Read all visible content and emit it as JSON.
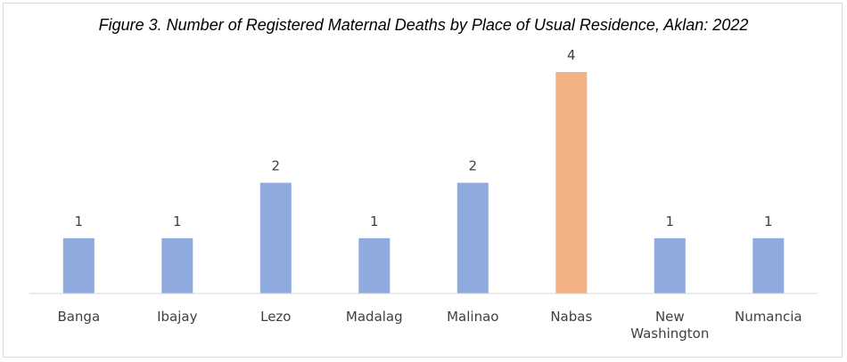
{
  "chart_data": {
    "type": "bar",
    "title": "Figure 3. Number of Registered Maternal Deaths by Place of Usual Residence, Aklan: 2022",
    "xlabel": "",
    "ylabel": "",
    "categories": [
      [
        "Banga"
      ],
      [
        "Ibajay"
      ],
      [
        "Lezo"
      ],
      [
        "Madalag"
      ],
      [
        "Malinao"
      ],
      [
        "Nabas"
      ],
      [
        "New",
        "Washington"
      ],
      [
        "Numancia"
      ]
    ],
    "values": [
      1,
      1,
      2,
      1,
      2,
      4,
      1,
      1
    ],
    "ylim": [
      0,
      4
    ],
    "grid": false,
    "legend": "none",
    "colors": {
      "default_bar": "#8FAADC",
      "highlight_bar": "#F4B183",
      "axis": "#d9d9d9",
      "text": "#404040"
    },
    "highlight_category": "Nabas"
  }
}
